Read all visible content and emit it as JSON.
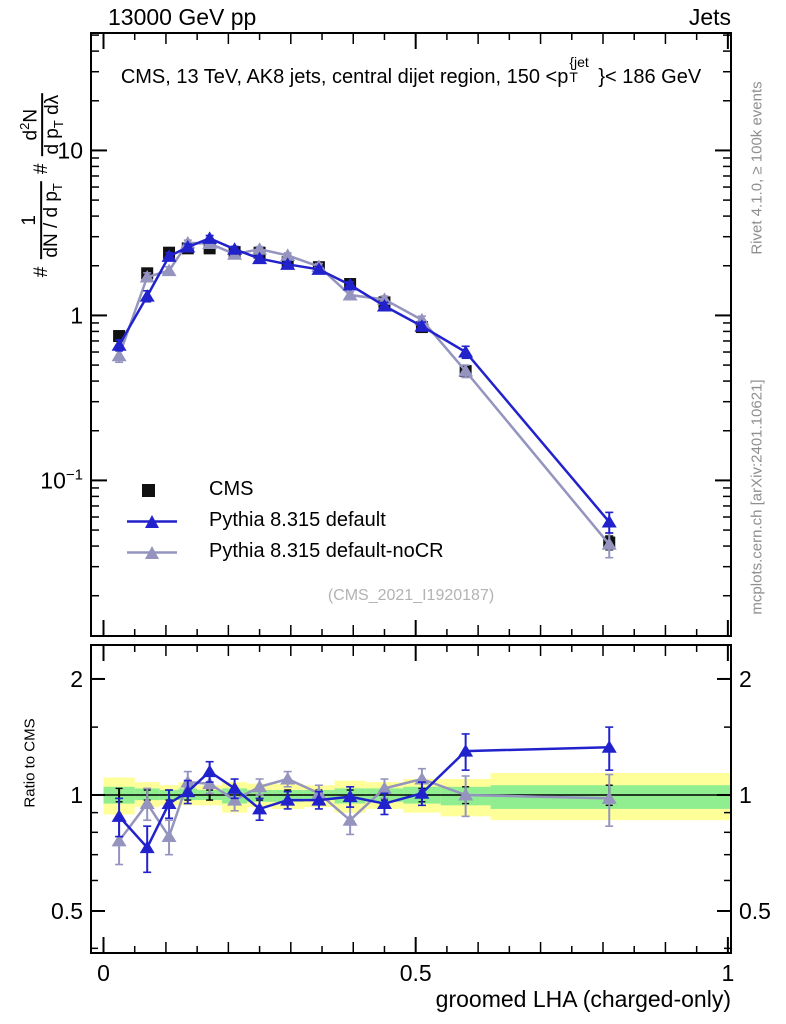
{
  "header": {
    "left": "13000 GeV pp",
    "right": "Jets"
  },
  "panel_title": {
    "pre": "CMS, 13 TeV, AK8 jets, central dijet region, 150 <p",
    "sup": "{jet",
    "sub": "T",
    "post": "}< 186 GeV"
  },
  "watermark": "(CMS_2021_I1920187)",
  "side_notes": {
    "top": "Rivet 4.1.0, ≥ 100k events",
    "bottom": "mcplots.cern.ch [arXiv:2401.10621]"
  },
  "ylabel": {
    "hash1": "#",
    "frac1_num": "1",
    "frac1_den_pre": "dN / d p",
    "frac1_den_sub": "T",
    "hash2": "#",
    "frac2_num_pre": "d",
    "frac2_num_sup": "2",
    "frac2_num_post": "N",
    "frac2_den_pre": "d p",
    "frac2_den_sub": "T",
    "frac2_den_post": " dλ"
  },
  "xlabel": "groomed LHA (charged-only)",
  "chart_data": {
    "type": "line",
    "title": "CMS, 13 TeV, AK8 jets, central dijet region, 150 < pT^jet < 186 GeV",
    "xlabel": "groomed LHA (charged-only)",
    "ylabel": "# 1/(dN/dpT) # d2N/(dpT dlambda)",
    "x": [
      0.025,
      0.07,
      0.105,
      0.135,
      0.17,
      0.21,
      0.25,
      0.295,
      0.345,
      0.395,
      0.45,
      0.51,
      0.58,
      0.81
    ],
    "bin_edges": [
      0.0,
      0.05,
      0.09,
      0.12,
      0.15,
      0.19,
      0.23,
      0.27,
      0.32,
      0.37,
      0.42,
      0.48,
      0.54,
      0.62,
      1.005
    ],
    "series": [
      {
        "name": "CMS",
        "color": "#111111",
        "marker": "square",
        "line": false,
        "y": [
          0.75,
          1.8,
          2.4,
          2.55,
          2.55,
          2.42,
          2.4,
          2.1,
          1.96,
          1.55,
          1.2,
          0.85,
          0.46,
          0.042
        ],
        "yerr": [
          0.05,
          0.09,
          0.1,
          0.1,
          0.1,
          0.09,
          0.09,
          0.08,
          0.08,
          0.07,
          0.06,
          0.05,
          0.035,
          0.004
        ]
      },
      {
        "name": "Pythia 8.315 default",
        "color": "#2222cc",
        "marker": "triangle",
        "line": true,
        "y": [
          0.66,
          1.31,
          2.28,
          2.6,
          2.93,
          2.52,
          2.21,
          2.04,
          1.9,
          1.53,
          1.14,
          0.86,
          0.6,
          0.056
        ],
        "yerr": [
          0.05,
          0.1,
          0.12,
          0.11,
          0.12,
          0.1,
          0.09,
          0.08,
          0.08,
          0.07,
          0.06,
          0.05,
          0.05,
          0.008
        ]
      },
      {
        "name": "Pythia 8.315 default-noCR",
        "color": "#9494bf",
        "marker": "triangle",
        "line": true,
        "y": [
          0.57,
          1.71,
          1.87,
          2.75,
          2.73,
          2.35,
          2.52,
          2.31,
          1.98,
          1.33,
          1.25,
          0.94,
          0.46,
          0.041
        ],
        "yerr": [
          0.05,
          0.1,
          0.1,
          0.11,
          0.11,
          0.09,
          0.09,
          0.08,
          0.08,
          0.06,
          0.06,
          0.05,
          0.04,
          0.007
        ]
      }
    ],
    "ratio": {
      "label": "Ratio to CMS",
      "series": [
        {
          "name": "Pythia 8.315 default",
          "color": "#2222cc",
          "y": [
            0.88,
            0.73,
            0.95,
            1.02,
            1.15,
            1.04,
            0.92,
            0.97,
            0.97,
            0.99,
            0.95,
            1.01,
            1.3,
            1.33
          ],
          "yerr": [
            0.1,
            0.1,
            0.08,
            0.07,
            0.07,
            0.06,
            0.06,
            0.05,
            0.05,
            0.06,
            0.06,
            0.07,
            0.14,
            0.17
          ]
        },
        {
          "name": "Pythia 8.315 default-noCR",
          "color": "#9494bf",
          "y": [
            0.76,
            0.95,
            0.78,
            1.08,
            1.07,
            0.97,
            1.05,
            1.1,
            1.01,
            0.86,
            1.04,
            1.1,
            1.0,
            0.98
          ],
          "yerr": [
            0.1,
            0.09,
            0.08,
            0.07,
            0.06,
            0.06,
            0.05,
            0.05,
            0.05,
            0.07,
            0.06,
            0.07,
            0.12,
            0.15
          ]
        }
      ],
      "cms_err": [
        0.04,
        0.03,
        0.03,
        0.03,
        0.03,
        0.03,
        0.03,
        0.03,
        0.03,
        0.03,
        0.03,
        0.04,
        0.05,
        0.06
      ],
      "bands": [
        {
          "x0": 0.0,
          "x1": 0.05,
          "y_lo": 0.89,
          "y_hi": 1.11,
          "g_lo": 0.95,
          "g_hi": 1.05
        },
        {
          "x0": 0.05,
          "x1": 0.09,
          "y_lo": 0.93,
          "y_hi": 1.08,
          "g_lo": 0.97,
          "g_hi": 1.04
        },
        {
          "x0": 0.09,
          "x1": 0.12,
          "y_lo": 0.94,
          "y_hi": 1.06,
          "g_lo": 0.97,
          "g_hi": 1.03
        },
        {
          "x0": 0.12,
          "x1": 0.15,
          "y_lo": 0.94,
          "y_hi": 1.08,
          "g_lo": 0.97,
          "g_hi": 1.04
        },
        {
          "x0": 0.15,
          "x1": 0.19,
          "y_lo": 0.94,
          "y_hi": 1.06,
          "g_lo": 0.97,
          "g_hi": 1.03
        },
        {
          "x0": 0.19,
          "x1": 0.23,
          "y_lo": 0.9,
          "y_hi": 1.08,
          "g_lo": 0.95,
          "g_hi": 1.04
        },
        {
          "x0": 0.23,
          "x1": 0.27,
          "y_lo": 0.93,
          "y_hi": 1.07,
          "g_lo": 0.96,
          "g_hi": 1.03
        },
        {
          "x0": 0.27,
          "x1": 0.32,
          "y_lo": 0.92,
          "y_hi": 1.07,
          "g_lo": 0.96,
          "g_hi": 1.03
        },
        {
          "x0": 0.32,
          "x1": 0.37,
          "y_lo": 0.93,
          "y_hi": 1.06,
          "g_lo": 0.97,
          "g_hi": 1.03
        },
        {
          "x0": 0.37,
          "x1": 0.42,
          "y_lo": 0.9,
          "y_hi": 1.09,
          "g_lo": 0.95,
          "g_hi": 1.04
        },
        {
          "x0": 0.42,
          "x1": 0.48,
          "y_lo": 0.92,
          "y_hi": 1.08,
          "g_lo": 0.96,
          "g_hi": 1.04
        },
        {
          "x0": 0.48,
          "x1": 0.54,
          "y_lo": 0.9,
          "y_hi": 1.1,
          "g_lo": 0.95,
          "g_hi": 1.05
        },
        {
          "x0": 0.54,
          "x1": 0.62,
          "y_lo": 0.88,
          "y_hi": 1.1,
          "g_lo": 0.94,
          "g_hi": 1.05
        },
        {
          "x0": 0.62,
          "x1": 1.005,
          "y_lo": 0.86,
          "y_hi": 1.14,
          "g_lo": 0.92,
          "g_hi": 1.06
        }
      ],
      "band_colors": {
        "yellow": "#ffff99",
        "green": "#90ee90"
      }
    },
    "axes": {
      "xmin": -0.02,
      "xmax": 1.005,
      "ymin": 0.0114,
      "ymax": 51.5,
      "rmin": 0.389,
      "rmax": 2.45,
      "xticks": [
        {
          "v": 0,
          "label": "0"
        },
        {
          "v": 0.5,
          "label": "0.5"
        },
        {
          "v": 1,
          "label": "1"
        }
      ],
      "xminor_step": 0.05,
      "yticks": [
        {
          "v": 10,
          "label": "10"
        },
        {
          "v": 1,
          "label": "1"
        },
        {
          "v": 0.1,
          "label": "10",
          "sup": "−1"
        }
      ],
      "rticks": [
        {
          "v": 2,
          "label": "2"
        },
        {
          "v": 1,
          "label": "1"
        },
        {
          "v": 0.5,
          "label": "0.5"
        }
      ],
      "rminor": [
        0.4,
        0.6,
        0.7,
        0.8,
        0.9,
        1.5
      ],
      "grid": false,
      "legend_position": "inside-left-middle"
    }
  }
}
